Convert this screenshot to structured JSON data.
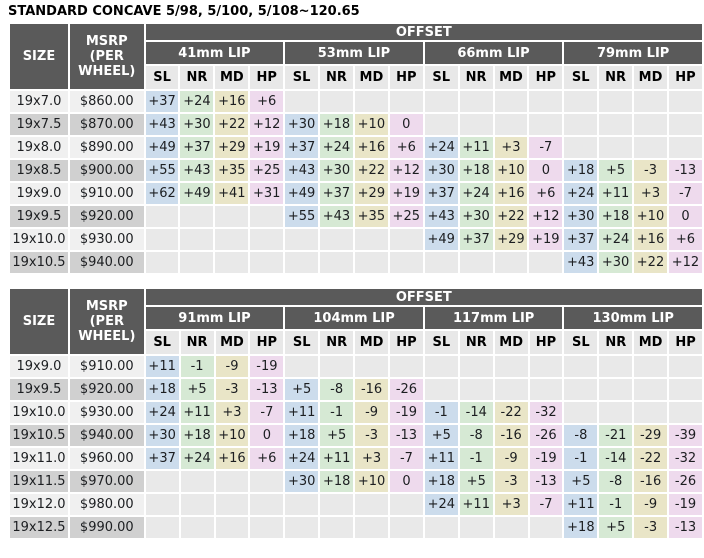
{
  "title": "STANDARD CONCAVE 5/98, 5/100, 5/108~120.65",
  "colors": {
    "header_bg": "#5a5a5a",
    "header_text": "#ffffff",
    "subheader_bg": "#e8e8e8",
    "col_sl": "#ccdcec",
    "col_nr": "#d6e9d4",
    "col_md": "#e9e5c7",
    "col_hp": "#eedaed",
    "empty_cell": "#e9e9e9",
    "row_light": "#f0f0f0",
    "row_dark": "#d0d0d0",
    "text": "#1c1e21"
  },
  "tables": [
    {
      "size_header": "SIZE",
      "msrp_header": "MSRP (PER WHEEL)",
      "offset_header": "OFFSET",
      "groups": [
        "41mm LIP",
        "53mm LIP",
        "66mm LIP",
        "79mm LIP"
      ],
      "subcolumns": [
        "SL",
        "NR",
        "MD",
        "HP"
      ],
      "rows": [
        {
          "size": "19x7.0",
          "msrp": "$860.00",
          "offsets": [
            "+37",
            "+24",
            "+16",
            "+6",
            "",
            "",
            "",
            "",
            "",
            "",
            "",
            "",
            "",
            "",
            "",
            ""
          ]
        },
        {
          "size": "19x7.5",
          "msrp": "$870.00",
          "offsets": [
            "+43",
            "+30",
            "+22",
            "+12",
            "+30",
            "+18",
            "+10",
            "0",
            "",
            "",
            "",
            "",
            "",
            "",
            "",
            ""
          ]
        },
        {
          "size": "19x8.0",
          "msrp": "$890.00",
          "offsets": [
            "+49",
            "+37",
            "+29",
            "+19",
            "+37",
            "+24",
            "+16",
            "+6",
            "+24",
            "+11",
            "+3",
            "-7",
            "",
            "",
            "",
            ""
          ]
        },
        {
          "size": "19x8.5",
          "msrp": "$900.00",
          "offsets": [
            "+55",
            "+43",
            "+35",
            "+25",
            "+43",
            "+30",
            "+22",
            "+12",
            "+30",
            "+18",
            "+10",
            "0",
            "+18",
            "+5",
            "-3",
            "-13"
          ]
        },
        {
          "size": "19x9.0",
          "msrp": "$910.00",
          "offsets": [
            "+62",
            "+49",
            "+41",
            "+31",
            "+49",
            "+37",
            "+29",
            "+19",
            "+37",
            "+24",
            "+16",
            "+6",
            "+24",
            "+11",
            "+3",
            "-7"
          ]
        },
        {
          "size": "19x9.5",
          "msrp": "$920.00",
          "offsets": [
            "",
            "",
            "",
            "",
            "+55",
            "+43",
            "+35",
            "+25",
            "+43",
            "+30",
            "+22",
            "+12",
            "+30",
            "+18",
            "+10",
            "0"
          ]
        },
        {
          "size": "19x10.0",
          "msrp": "$930.00",
          "offsets": [
            "",
            "",
            "",
            "",
            "",
            "",
            "",
            "",
            "+49",
            "+37",
            "+29",
            "+19",
            "+37",
            "+24",
            "+16",
            "+6"
          ]
        },
        {
          "size": "19x10.5",
          "msrp": "$940.00",
          "offsets": [
            "",
            "",
            "",
            "",
            "",
            "",
            "",
            "",
            "",
            "",
            "",
            "",
            "+43",
            "+30",
            "+22",
            "+12"
          ]
        }
      ]
    },
    {
      "size_header": "SIZE",
      "msrp_header": "MSRP (PER WHEEL)",
      "offset_header": "OFFSET",
      "groups": [
        "91mm LIP",
        "104mm LIP",
        "117mm LIP",
        "130mm LIP"
      ],
      "subcolumns": [
        "SL",
        "NR",
        "MD",
        "HP"
      ],
      "rows": [
        {
          "size": "19x9.0",
          "msrp": "$910.00",
          "offsets": [
            "+11",
            "-1",
            "-9",
            "-19",
            "",
            "",
            "",
            "",
            "",
            "",
            "",
            "",
            "",
            "",
            "",
            ""
          ]
        },
        {
          "size": "19x9.5",
          "msrp": "$920.00",
          "offsets": [
            "+18",
            "+5",
            "-3",
            "-13",
            "+5",
            "-8",
            "-16",
            "-26",
            "",
            "",
            "",
            "",
            "",
            "",
            "",
            ""
          ]
        },
        {
          "size": "19x10.0",
          "msrp": "$930.00",
          "offsets": [
            "+24",
            "+11",
            "+3",
            "-7",
            "+11",
            "-1",
            "-9",
            "-19",
            "-1",
            "-14",
            "-22",
            "-32",
            "",
            "",
            "",
            ""
          ]
        },
        {
          "size": "19x10.5",
          "msrp": "$940.00",
          "offsets": [
            "+30",
            "+18",
            "+10",
            "0",
            "+18",
            "+5",
            "-3",
            "-13",
            "+5",
            "-8",
            "-16",
            "-26",
            "-8",
            "-21",
            "-29",
            "-39"
          ]
        },
        {
          "size": "19x11.0",
          "msrp": "$960.00",
          "offsets": [
            "+37",
            "+24",
            "+16",
            "+6",
            "+24",
            "+11",
            "+3",
            "-7",
            "+11",
            "-1",
            "-9",
            "-19",
            "-1",
            "-14",
            "-22",
            "-32"
          ]
        },
        {
          "size": "19x11.5",
          "msrp": "$970.00",
          "offsets": [
            "",
            "",
            "",
            "",
            "+30",
            "+18",
            "+10",
            "0",
            "+18",
            "+5",
            "-3",
            "-13",
            "+5",
            "-8",
            "-16",
            "-26"
          ]
        },
        {
          "size": "19x12.0",
          "msrp": "$980.00",
          "offsets": [
            "",
            "",
            "",
            "",
            "",
            "",
            "",
            "",
            "+24",
            "+11",
            "+3",
            "-7",
            "+11",
            "-1",
            "-9",
            "-19"
          ]
        },
        {
          "size": "19x12.5",
          "msrp": "$990.00",
          "offsets": [
            "",
            "",
            "",
            "",
            "",
            "",
            "",
            "",
            "",
            "",
            "",
            "",
            "+18",
            "+5",
            "-3",
            "-13"
          ]
        }
      ]
    }
  ]
}
